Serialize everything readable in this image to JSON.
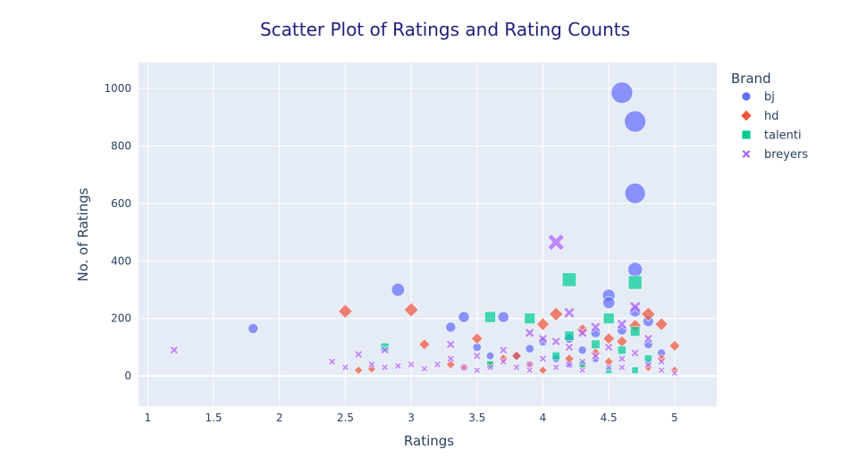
{
  "chart_data": {
    "type": "scatter",
    "title": "Scatter Plot of Ratings and Rating Counts",
    "xlabel": "Ratings",
    "ylabel": "No. of Ratings",
    "xlim": [
      0.93,
      5.32
    ],
    "ylim": [
      -105,
      1090
    ],
    "x_ticks": [
      "1",
      "1.5",
      "2",
      "2.5",
      "3",
      "3.5",
      "4",
      "4.5",
      "5"
    ],
    "y_ticks": [
      "0",
      "200",
      "400",
      "600",
      "800",
      "1000"
    ],
    "grid": true,
    "legend": {
      "title": "Brand",
      "placement": "top-right"
    },
    "series": [
      {
        "name": "bj",
        "symbol": "circle",
        "color": "#636efa",
        "points": [
          [
            1.8,
            165
          ],
          [
            2.9,
            300
          ],
          [
            3.3,
            170
          ],
          [
            3.4,
            205
          ],
          [
            3.5,
            100
          ],
          [
            3.6,
            70
          ],
          [
            3.7,
            205
          ],
          [
            3.8,
            70
          ],
          [
            3.9,
            95
          ],
          [
            4.0,
            120
          ],
          [
            4.1,
            60
          ],
          [
            4.2,
            130
          ],
          [
            4.3,
            90
          ],
          [
            4.4,
            150
          ],
          [
            4.5,
            280
          ],
          [
            4.5,
            255
          ],
          [
            4.6,
            985
          ],
          [
            4.7,
            885
          ],
          [
            4.7,
            635
          ],
          [
            4.7,
            370
          ],
          [
            4.7,
            225
          ],
          [
            4.8,
            190
          ],
          [
            4.8,
            110
          ],
          [
            4.9,
            80
          ],
          [
            4.6,
            160
          ],
          [
            4.4,
            60
          ],
          [
            4.2,
            40
          ],
          [
            4.8,
            45
          ]
        ]
      },
      {
        "name": "hd",
        "symbol": "diamond",
        "color": "#ef553b",
        "points": [
          [
            2.5,
            225
          ],
          [
            2.6,
            20
          ],
          [
            2.7,
            25
          ],
          [
            3.0,
            230
          ],
          [
            3.1,
            110
          ],
          [
            3.3,
            40
          ],
          [
            3.4,
            30
          ],
          [
            3.5,
            130
          ],
          [
            3.6,
            40
          ],
          [
            3.7,
            60
          ],
          [
            3.8,
            70
          ],
          [
            3.9,
            40
          ],
          [
            4.0,
            180
          ],
          [
            4.1,
            215
          ],
          [
            4.2,
            60
          ],
          [
            4.3,
            40
          ],
          [
            4.4,
            80
          ],
          [
            4.5,
            50
          ],
          [
            4.6,
            120
          ],
          [
            4.7,
            175
          ],
          [
            4.8,
            215
          ],
          [
            4.9,
            180
          ],
          [
            5.0,
            105
          ],
          [
            5.0,
            20
          ],
          [
            4.8,
            30
          ],
          [
            4.5,
            130
          ],
          [
            4.0,
            20
          ],
          [
            4.9,
            60
          ],
          [
            4.3,
            160
          ]
        ]
      },
      {
        "name": "talenti",
        "symbol": "square",
        "color": "#00cc96",
        "points": [
          [
            2.8,
            100
          ],
          [
            3.6,
            205
          ],
          [
            3.6,
            40
          ],
          [
            3.9,
            200
          ],
          [
            4.1,
            70
          ],
          [
            4.2,
            335
          ],
          [
            4.2,
            140
          ],
          [
            4.3,
            40
          ],
          [
            4.4,
            110
          ],
          [
            4.5,
            200
          ],
          [
            4.6,
            90
          ],
          [
            4.7,
            325
          ],
          [
            4.7,
            155
          ],
          [
            4.7,
            20
          ],
          [
            4.8,
            60
          ],
          [
            4.5,
            20
          ]
        ]
      },
      {
        "name": "breyers",
        "symbol": "x",
        "color": "#ab63fa",
        "points": [
          [
            1.2,
            90
          ],
          [
            2.4,
            50
          ],
          [
            2.5,
            30
          ],
          [
            2.6,
            75
          ],
          [
            2.7,
            40
          ],
          [
            2.8,
            30
          ],
          [
            2.8,
            90
          ],
          [
            3.0,
            40
          ],
          [
            3.1,
            25
          ],
          [
            3.2,
            40
          ],
          [
            3.3,
            60
          ],
          [
            3.3,
            110
          ],
          [
            3.4,
            30
          ],
          [
            3.5,
            20
          ],
          [
            3.6,
            30
          ],
          [
            3.7,
            50
          ],
          [
            3.8,
            30
          ],
          [
            3.9,
            150
          ],
          [
            3.9,
            40
          ],
          [
            4.0,
            130
          ],
          [
            4.0,
            60
          ],
          [
            4.1,
            465
          ],
          [
            4.1,
            30
          ],
          [
            4.2,
            220
          ],
          [
            4.2,
            100
          ],
          [
            4.3,
            50
          ],
          [
            4.3,
            150
          ],
          [
            4.4,
            70
          ],
          [
            4.4,
            170
          ],
          [
            4.5,
            30
          ],
          [
            4.5,
            100
          ],
          [
            4.6,
            60
          ],
          [
            4.6,
            30
          ],
          [
            4.7,
            240
          ],
          [
            4.7,
            80
          ],
          [
            4.8,
            40
          ],
          [
            4.9,
            20
          ],
          [
            5.0,
            10
          ],
          [
            4.9,
            50
          ],
          [
            3.5,
            70
          ],
          [
            3.9,
            20
          ],
          [
            4.1,
            120
          ],
          [
            4.3,
            20
          ],
          [
            4.8,
            130
          ],
          [
            4.6,
            180
          ],
          [
            2.9,
            35
          ],
          [
            3.7,
            90
          ],
          [
            4.2,
            40
          ]
        ]
      }
    ]
  }
}
